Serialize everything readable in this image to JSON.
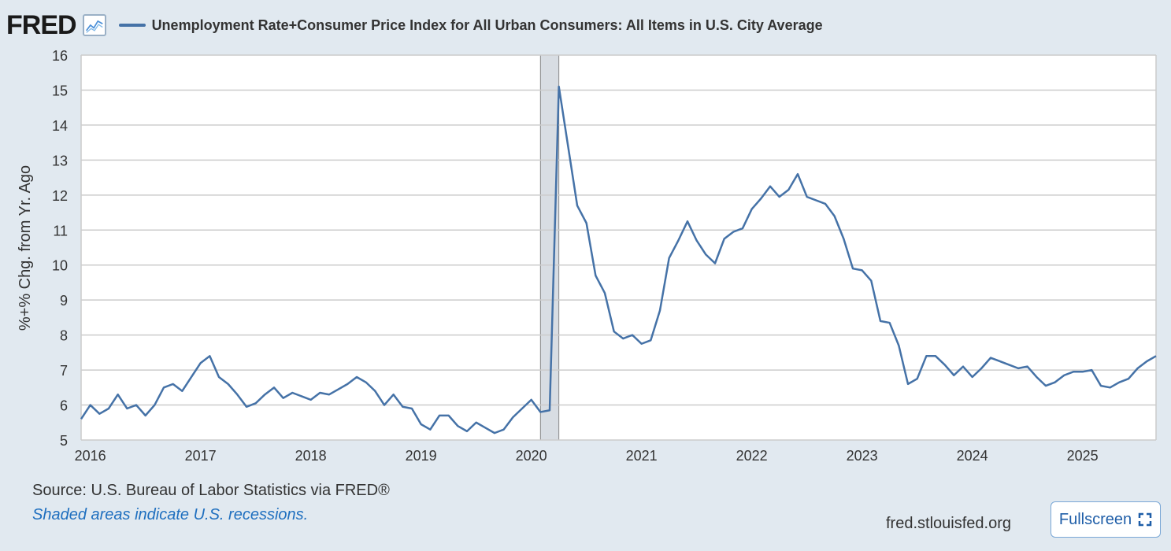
{
  "header": {
    "logo_text": "FRED",
    "logo_icon": "line-chart-icon",
    "legend_label": "Unemployment Rate+Consumer Price Index for All Urban Consumers: All Items in U.S. City Average"
  },
  "colors": {
    "series": "#4572a7",
    "recession": "#d8dde3",
    "grid": "#cccccc",
    "background": "#e1e9f0",
    "link": "#1f6fbf"
  },
  "footer": {
    "source": "Source: U.S. Bureau of Labor Statistics via FRED®",
    "recession_note": "Shaded areas indicate U.S. recessions.",
    "site": "fred.stlouisfed.org",
    "fullscreen_label": "Fullscreen",
    "fullscreen_icon": "expand-icon"
  },
  "chart_data": {
    "type": "line",
    "title": "Unemployment Rate+Consumer Price Index for All Urban Consumers: All Items in U.S. City Average",
    "xlabel": "",
    "ylabel": "%+% Chg. from Yr. Ago",
    "ylim": [
      5,
      16
    ],
    "yticks": [
      "5",
      "6",
      "7",
      "8",
      "9",
      "10",
      "11",
      "12",
      "13",
      "14",
      "15",
      "16"
    ],
    "xticks": [
      "2016",
      "2017",
      "2018",
      "2019",
      "2020",
      "2021",
      "2022",
      "2023",
      "2024",
      "2025"
    ],
    "xlim": [
      "2015-12",
      "2025-09"
    ],
    "grid": true,
    "recessions": [
      {
        "start": "2020-02",
        "end": "2020-04"
      }
    ],
    "series": [
      {
        "name": "Unemployment Rate+Consumer Price Index for All Urban Consumers: All Items in U.S. City Average",
        "start": "2015-12",
        "frequency": "monthly",
        "values": [
          5.6,
          6.0,
          5.75,
          5.9,
          6.3,
          5.9,
          6.0,
          5.7,
          6.0,
          6.5,
          6.6,
          6.4,
          6.8,
          7.2,
          7.4,
          6.8,
          6.6,
          6.3,
          5.95,
          6.05,
          6.3,
          6.5,
          6.2,
          6.35,
          6.25,
          6.15,
          6.35,
          6.3,
          6.45,
          6.6,
          6.8,
          6.65,
          6.4,
          6.0,
          6.3,
          5.95,
          5.9,
          5.45,
          5.3,
          5.7,
          5.7,
          5.4,
          5.25,
          5.5,
          5.35,
          5.2,
          5.3,
          5.65,
          5.9,
          6.15,
          5.8,
          5.85,
          15.1,
          13.4,
          11.7,
          11.2,
          9.7,
          9.2,
          8.1,
          7.9,
          8.0,
          7.75,
          7.85,
          8.7,
          10.2,
          10.7,
          11.25,
          10.7,
          10.3,
          10.05,
          10.75,
          10.95,
          11.05,
          11.6,
          11.9,
          12.25,
          11.95,
          12.15,
          12.6,
          11.95,
          11.85,
          11.75,
          11.4,
          10.75,
          9.9,
          9.85,
          9.55,
          8.4,
          8.35,
          7.7,
          6.6,
          6.75,
          7.4,
          7.4,
          7.15,
          6.85,
          7.1,
          6.8,
          7.05,
          7.35,
          7.25,
          7.15,
          7.05,
          7.1,
          6.8,
          6.55,
          6.65,
          6.85,
          6.95,
          6.95,
          7.0,
          6.55,
          6.5,
          6.65,
          6.75,
          7.05,
          7.25,
          7.4
        ]
      }
    ]
  }
}
